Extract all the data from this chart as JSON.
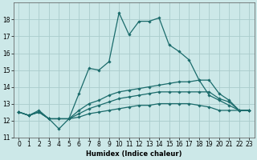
{
  "xlabel": "Humidex (Indice chaleur)",
  "bg_color": "#cce8e8",
  "grid_color": "#aacccc",
  "line_color": "#1a6b6b",
  "xlim": [
    -0.5,
    23.5
  ],
  "ylim": [
    11,
    19
  ],
  "yticks": [
    11,
    12,
    13,
    14,
    15,
    16,
    17,
    18
  ],
  "xticks": [
    0,
    1,
    2,
    3,
    4,
    5,
    6,
    7,
    8,
    9,
    10,
    11,
    12,
    13,
    14,
    15,
    16,
    17,
    18,
    19,
    20,
    21,
    22,
    23
  ],
  "series1_x": [
    0,
    1,
    2,
    3,
    4,
    5,
    6,
    7,
    8,
    9,
    10,
    11,
    12,
    13,
    14,
    15,
    16,
    17,
    18,
    19,
    20,
    21,
    22,
    23
  ],
  "series1_y": [
    12.5,
    12.3,
    12.6,
    12.1,
    11.5,
    12.1,
    13.6,
    15.1,
    15.0,
    15.5,
    18.4,
    17.1,
    17.9,
    17.9,
    18.1,
    16.5,
    16.1,
    15.6,
    14.4,
    13.5,
    13.2,
    12.9,
    12.6,
    12.6
  ],
  "series2_x": [
    0,
    1,
    2,
    3,
    4,
    5,
    6,
    7,
    8,
    9,
    10,
    11,
    12,
    13,
    14,
    15,
    16,
    17,
    18,
    19,
    20,
    21,
    22,
    23
  ],
  "series2_y": [
    12.5,
    12.3,
    12.5,
    12.1,
    12.1,
    12.1,
    12.6,
    13.0,
    13.2,
    13.5,
    13.7,
    13.8,
    13.9,
    14.0,
    14.1,
    14.2,
    14.3,
    14.3,
    14.4,
    14.4,
    13.6,
    13.2,
    12.6,
    12.6
  ],
  "series3_x": [
    0,
    1,
    2,
    3,
    4,
    5,
    6,
    7,
    8,
    9,
    10,
    11,
    12,
    13,
    14,
    15,
    16,
    17,
    18,
    19,
    20,
    21,
    22,
    23
  ],
  "series3_y": [
    12.5,
    12.3,
    12.5,
    12.1,
    12.1,
    12.1,
    12.4,
    12.7,
    12.9,
    13.1,
    13.3,
    13.4,
    13.5,
    13.6,
    13.7,
    13.7,
    13.7,
    13.7,
    13.7,
    13.7,
    13.3,
    13.1,
    12.6,
    12.6
  ],
  "series4_x": [
    0,
    1,
    2,
    3,
    4,
    5,
    6,
    7,
    8,
    9,
    10,
    11,
    12,
    13,
    14,
    15,
    16,
    17,
    18,
    19,
    20,
    21,
    22,
    23
  ],
  "series4_y": [
    12.5,
    12.3,
    12.5,
    12.1,
    12.1,
    12.1,
    12.2,
    12.4,
    12.5,
    12.6,
    12.7,
    12.8,
    12.9,
    12.9,
    13.0,
    13.0,
    13.0,
    13.0,
    12.9,
    12.8,
    12.6,
    12.6,
    12.6,
    12.6
  ],
  "tick_fontsize": 5.5,
  "xlabel_fontsize": 6.0,
  "marker_size": 1.8,
  "line_width": 0.9
}
